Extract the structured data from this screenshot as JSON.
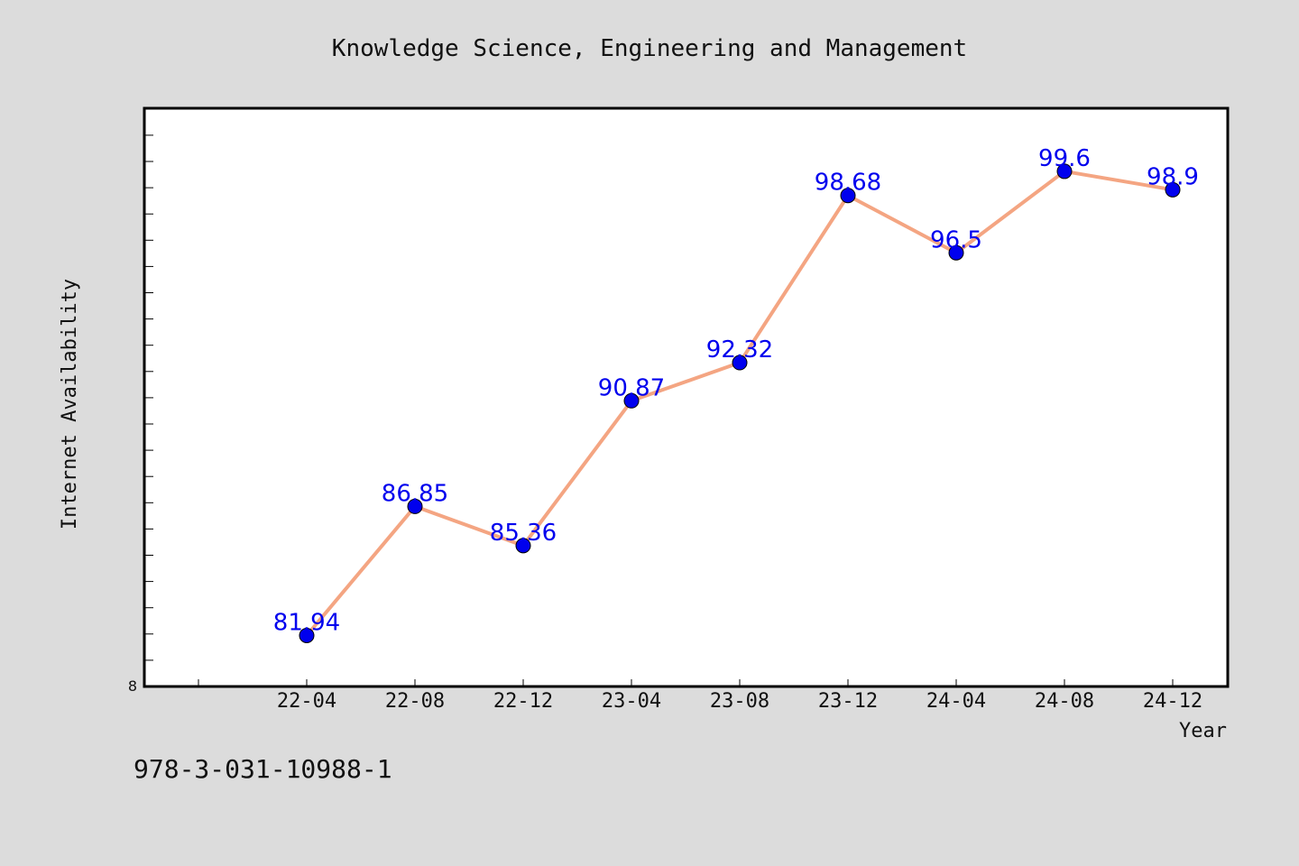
{
  "colors": {
    "background": "#dcdcdc",
    "plot_background": "#ffffff",
    "line": "#f4a582",
    "marker": "#0000ee",
    "data_label": "#0000ee"
  },
  "footer": {
    "isbn": "978-3-031-10988-1"
  },
  "chart_data": {
    "type": "line",
    "title": "Knowledge Science, Engineering and Management",
    "xlabel": "Year",
    "ylabel": "Internet Availability",
    "categories": [
      "22-04",
      "22-08",
      "22-12",
      "23-04",
      "23-08",
      "23-12",
      "24-04",
      "24-08",
      "24-12"
    ],
    "series": [
      {
        "values": [
          81.94,
          86.85,
          85.36,
          90.87,
          92.32,
          98.68,
          96.5,
          99.6,
          98.9
        ]
      }
    ],
    "data_labels": [
      "81.94",
      "86.85",
      "85.36",
      "90.87",
      "92.32",
      "98.68",
      "96.5",
      "99.6",
      "98.9"
    ],
    "ylim": [
      80,
      102
    ],
    "y_tick_labels": [
      "8"
    ],
    "grid": false,
    "legend": "none"
  }
}
